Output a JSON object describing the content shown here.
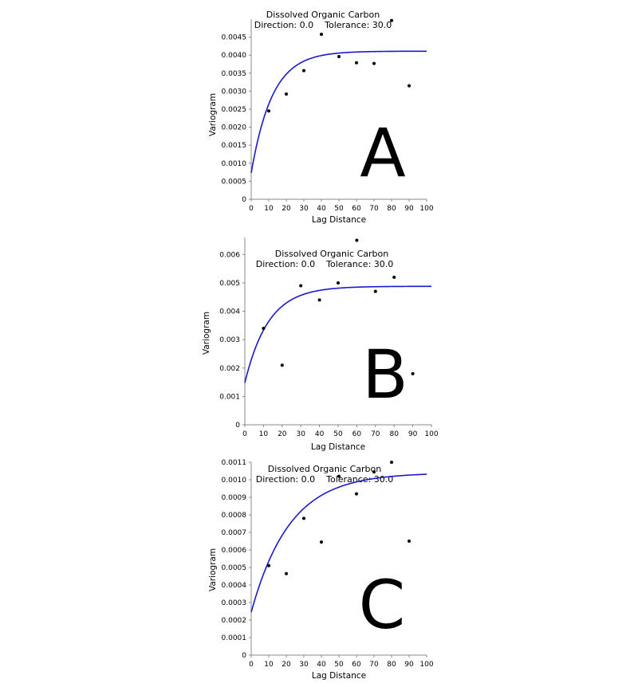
{
  "chart_data": [
    {
      "type": "scatter",
      "panel_letter": "A",
      "title": "Dissolved Organic Carbon",
      "subtitle": "Direction: 0.0    Tolerance: 30.0",
      "xlabel": "Lag Distance",
      "ylabel": "Variogram",
      "xlim": [
        0,
        100
      ],
      "ylim": [
        0,
        0.005
      ],
      "xticks": [
        "0",
        "10",
        "20",
        "30",
        "40",
        "50",
        "60",
        "70",
        "80",
        "90",
        "100"
      ],
      "yticks": [
        "0",
        "0.0005",
        "0.0010",
        "0.0015",
        "0.0020",
        "0.0025",
        "0.0030",
        "0.0035",
        "0.0040",
        "0.0045"
      ],
      "points": [
        {
          "x": 10,
          "y": 0.00245
        },
        {
          "x": 20,
          "y": 0.00292
        },
        {
          "x": 30,
          "y": 0.00357
        },
        {
          "x": 40,
          "y": 0.00458
        },
        {
          "x": 50,
          "y": 0.00396
        },
        {
          "x": 60,
          "y": 0.00379
        },
        {
          "x": 70,
          "y": 0.00377
        },
        {
          "x": 80,
          "y": 0.00496
        },
        {
          "x": 90,
          "y": 0.00315
        }
      ],
      "model": {
        "nugget": 0.00073,
        "sill": 0.00411,
        "range": 36
      },
      "colors": {
        "points": "#000000",
        "model": "#1a1acd"
      }
    },
    {
      "type": "scatter",
      "panel_letter": "B",
      "title": "Dissolved Organic Carbon",
      "subtitle": "Direction: 0.0    Tolerance: 30.0",
      "xlabel": "Lag Distance",
      "ylabel": "Variogram",
      "xlim": [
        0,
        100
      ],
      "ylim": [
        0,
        0.0066
      ],
      "xticks": [
        "0",
        "10",
        "20",
        "30",
        "40",
        "50",
        "60",
        "70",
        "80",
        "90",
        "100"
      ],
      "yticks": [
        "0",
        "0.001",
        "0.002",
        "0.003",
        "0.004",
        "0.005",
        "0.006"
      ],
      "points": [
        {
          "x": 10,
          "y": 0.0034
        },
        {
          "x": 20,
          "y": 0.0021
        },
        {
          "x": 30,
          "y": 0.0049
        },
        {
          "x": 40,
          "y": 0.0044
        },
        {
          "x": 50,
          "y": 0.005
        },
        {
          "x": 60,
          "y": 0.0065
        },
        {
          "x": 70,
          "y": 0.0047
        },
        {
          "x": 80,
          "y": 0.0052
        },
        {
          "x": 90,
          "y": 0.0018
        }
      ],
      "model": {
        "nugget": 0.00148,
        "sill": 0.00488,
        "range": 38
      },
      "colors": {
        "points": "#000000",
        "model": "#1a1acd"
      }
    },
    {
      "type": "scatter",
      "panel_letter": "C",
      "title": "Dissolved Organic Carbon",
      "subtitle": "Direction: 0.0    Tolerance: 30.0",
      "xlabel": "Lag Distance",
      "ylabel": "Variogram",
      "xlim": [
        0,
        100
      ],
      "ylim": [
        0,
        0.0011
      ],
      "xticks": [
        "0",
        "10",
        "20",
        "30",
        "40",
        "50",
        "60",
        "70",
        "80",
        "90",
        "100"
      ],
      "yticks": [
        "0",
        "0.0001",
        "0.0002",
        "0.0003",
        "0.0004",
        "0.0005",
        "0.0006",
        "0.0007",
        "0.0008",
        "0.0009",
        "0.0010",
        "0.0011"
      ],
      "points": [
        {
          "x": 10,
          "y": 0.00051
        },
        {
          "x": 20,
          "y": 0.000465
        },
        {
          "x": 30,
          "y": 0.00078
        },
        {
          "x": 40,
          "y": 0.000645
        },
        {
          "x": 50,
          "y": 0.00102
        },
        {
          "x": 60,
          "y": 0.00092
        },
        {
          "x": 70,
          "y": 0.001045
        },
        {
          "x": 80,
          "y": 0.0011
        },
        {
          "x": 90,
          "y": 0.00065
        }
      ],
      "model": {
        "nugget": 0.000245,
        "sill": 0.00104,
        "range": 66
      },
      "colors": {
        "points": "#000000",
        "model": "#1a1acd"
      }
    }
  ]
}
